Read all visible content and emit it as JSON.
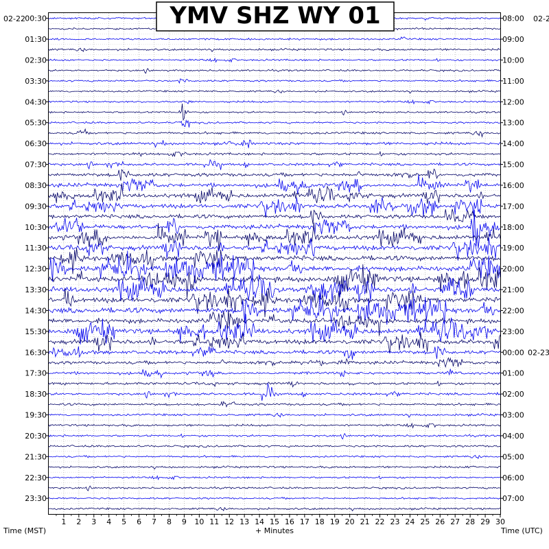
{
  "chart_data": {
    "type": "line",
    "title": "YMV SHZ WY 01",
    "xlabel": "+ Minutes",
    "x_ticks": [
      "1",
      "2",
      "3",
      "4",
      "5",
      "6",
      "7",
      "8",
      "9",
      "10",
      "11",
      "12",
      "13",
      "14",
      "15",
      "16",
      "17",
      "18",
      "19",
      "20",
      "21",
      "22",
      "23",
      "24",
      "25",
      "26",
      "27",
      "28",
      "29",
      "30"
    ],
    "xlim": [
      0,
      30
    ],
    "left_axis_label": "Time (MST)",
    "right_axis_label": "Time (UTC)",
    "left_date": "02-22",
    "right_date_top": "02-2",
    "right_date_change": "02-23",
    "left_ticks": [
      "00:30",
      "01:30",
      "02:30",
      "03:30",
      "04:30",
      "05:30",
      "06:30",
      "07:30",
      "08:30",
      "09:30",
      "10:30",
      "11:30",
      "12:30",
      "13:30",
      "14:30",
      "15:30",
      "16:30",
      "17:30",
      "18:30",
      "19:30",
      "20:30",
      "21:30",
      "22:30",
      "23:30"
    ],
    "right_ticks": [
      "08:00",
      "09:00",
      "10:00",
      "11:00",
      "12:00",
      "13:00",
      "14:00",
      "15:00",
      "16:00",
      "17:00",
      "18:00",
      "19:00",
      "20:00",
      "21:00",
      "22:00",
      "23:00",
      "00:00",
      "01:00",
      "02:00",
      "03:00",
      "04:00",
      "05:00",
      "06:00",
      "07:00"
    ],
    "trace_count": 48,
    "trace_colors": [
      "#0000ee",
      "#000066"
    ],
    "clip_color": "#ee0000",
    "grid": true,
    "trace_activity": [
      0.3,
      0.3,
      0.3,
      0.35,
      0.3,
      0.3,
      0.3,
      0.3,
      0.3,
      0.3,
      0.35,
      0.5,
      0.7,
      0.55,
      0.6,
      1.0,
      1.2,
      1.3,
      1.4,
      1.2,
      1.4,
      1.5,
      1.6,
      1.6,
      1.8,
      1.9,
      1.8,
      1.7,
      1.8,
      1.6,
      1.7,
      1.5,
      1.1,
      0.9,
      0.7,
      0.6,
      0.55,
      0.5,
      0.45,
      0.4,
      0.4,
      0.4,
      0.35,
      0.35,
      0.3,
      0.3,
      0.3,
      0.35
    ],
    "events": [
      {
        "trace": 9,
        "minute": 9.0,
        "amplitude": 6
      },
      {
        "trace": 10,
        "minute": 9.0,
        "amplitude": 4
      },
      {
        "trace": 6,
        "minute": 9.0,
        "amplitude": 3
      },
      {
        "trace": 20,
        "minute": 28.5,
        "amplitude": 3
      },
      {
        "trace": 32,
        "minute": 20.0,
        "amplitude": 4
      },
      {
        "trace": 33,
        "minute": 19.6,
        "amplitude": 3
      },
      {
        "trace": 11,
        "minute": 2.2,
        "amplitude": 3
      },
      {
        "trace": 36,
        "minute": 14.5,
        "amplitude": 2.5
      },
      {
        "trace": 43,
        "minute": 28.0,
        "amplitude": 2
      }
    ]
  }
}
